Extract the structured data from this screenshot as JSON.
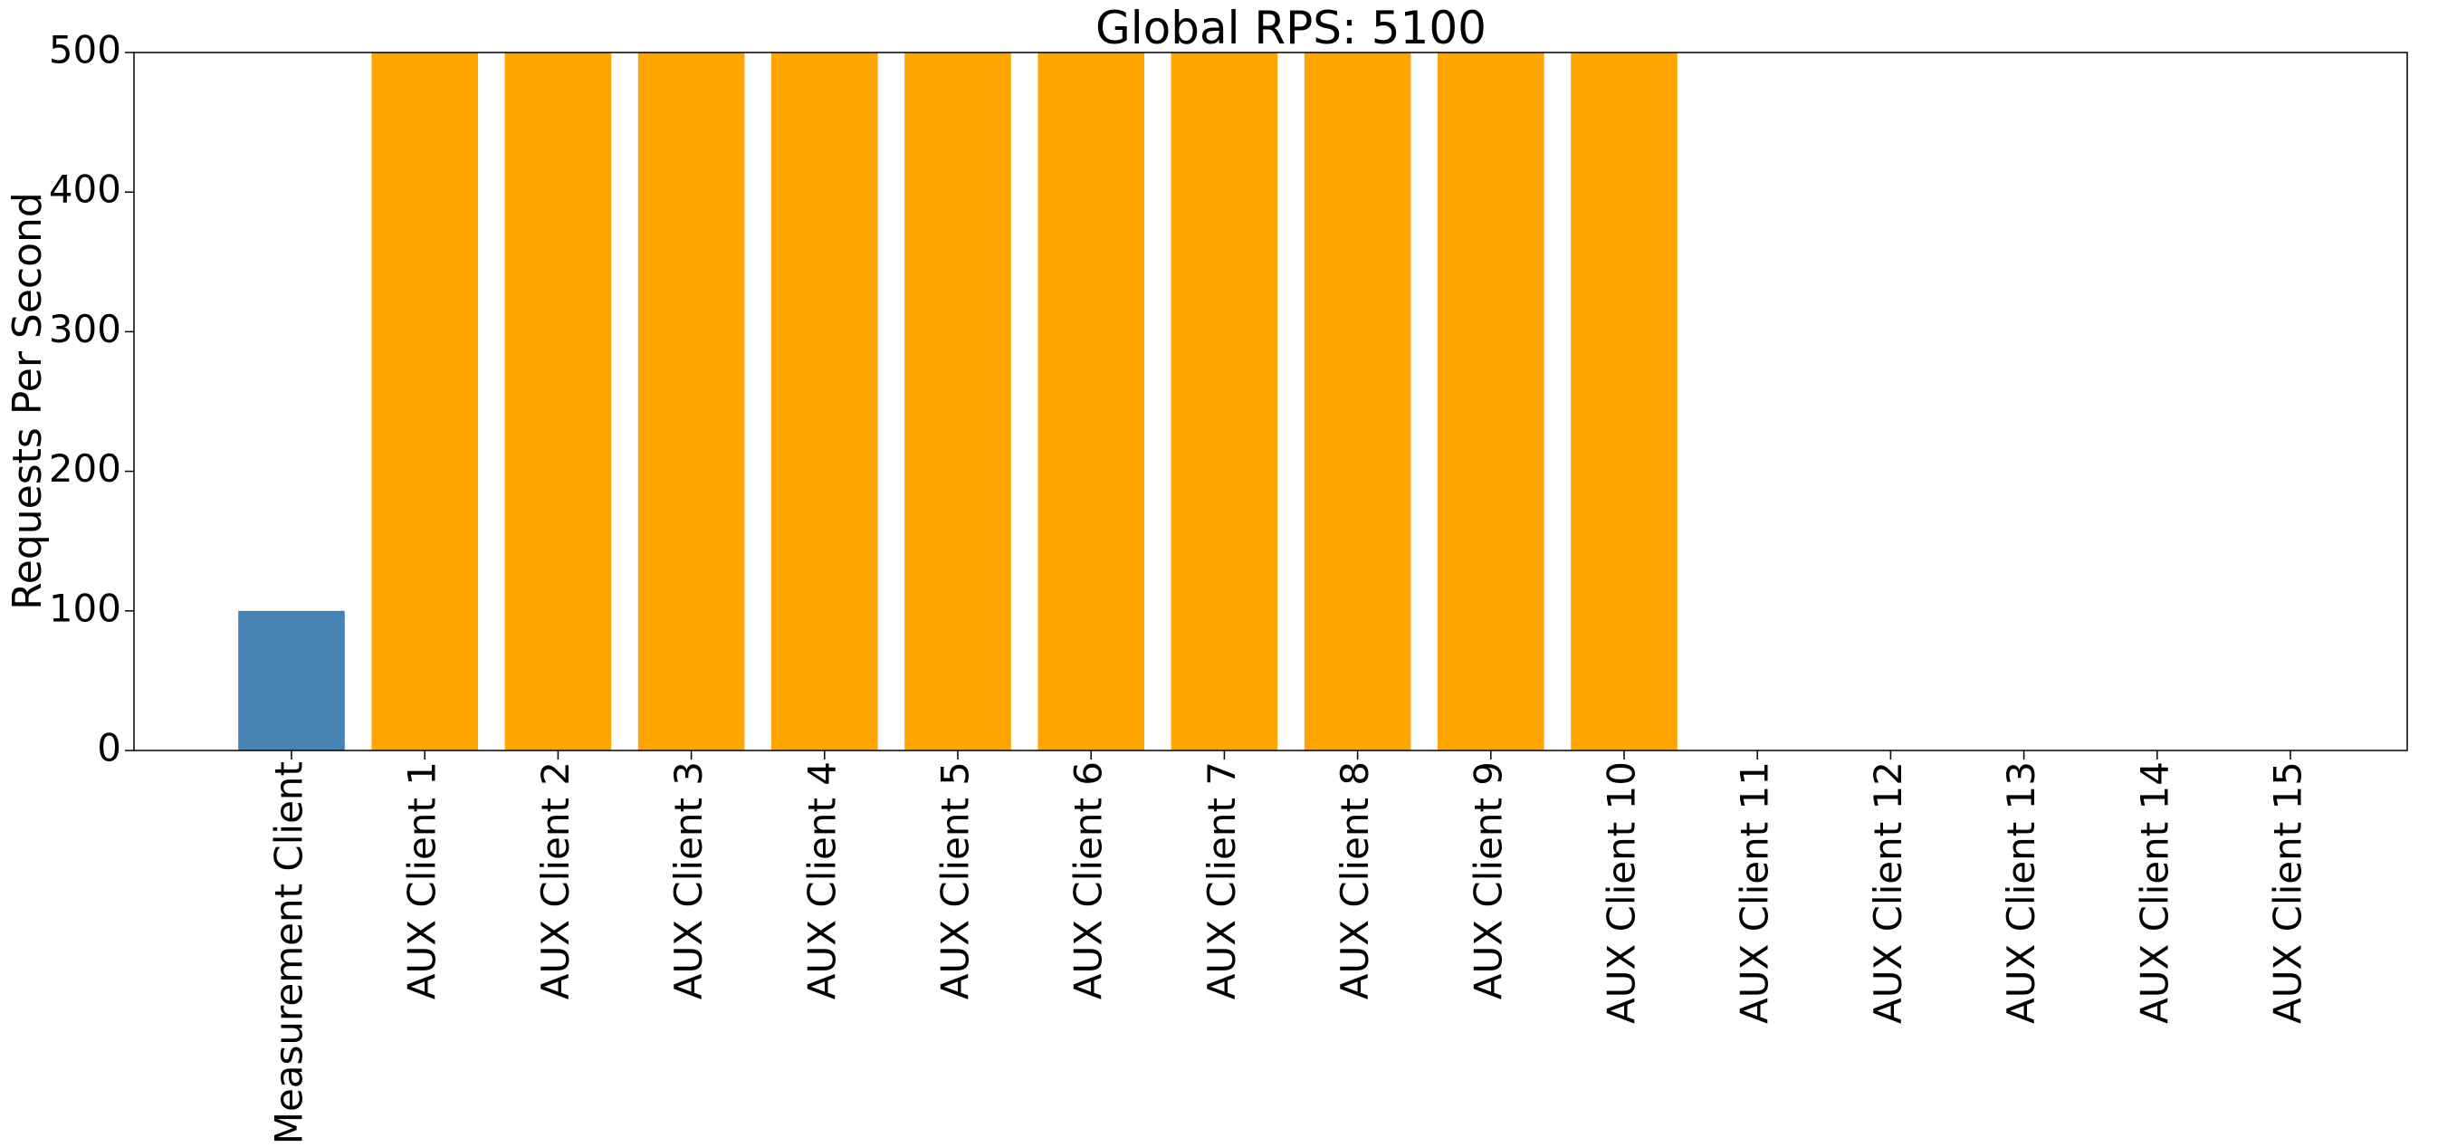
{
  "chart_data": {
    "type": "bar",
    "title": "Global RPS: 5100",
    "xlabel": "",
    "ylabel": "Requests Per Second",
    "ylim": [
      0,
      500
    ],
    "yticks": [
      0,
      100,
      200,
      300,
      400,
      500
    ],
    "grid": false,
    "categories": [
      "Measurement Client",
      "AUX Client 1",
      "AUX Client 2",
      "AUX Client 3",
      "AUX Client 4",
      "AUX Client 5",
      "AUX Client 6",
      "AUX Client 7",
      "AUX Client 8",
      "AUX Client 9",
      "AUX Client 10",
      "AUX Client 11",
      "AUX Client 12",
      "AUX Client 13",
      "AUX Client 14",
      "AUX Client 15"
    ],
    "values": [
      100,
      500,
      500,
      500,
      500,
      500,
      500,
      500,
      500,
      500,
      500,
      0,
      0,
      0,
      0,
      0
    ],
    "colors": [
      "#4682b4",
      "#ffa500",
      "#ffa500",
      "#ffa500",
      "#ffa500",
      "#ffa500",
      "#ffa500",
      "#ffa500",
      "#ffa500",
      "#ffa500",
      "#ffa500",
      "#ffa500",
      "#ffa500",
      "#ffa500",
      "#ffa500",
      "#ffa500"
    ]
  }
}
